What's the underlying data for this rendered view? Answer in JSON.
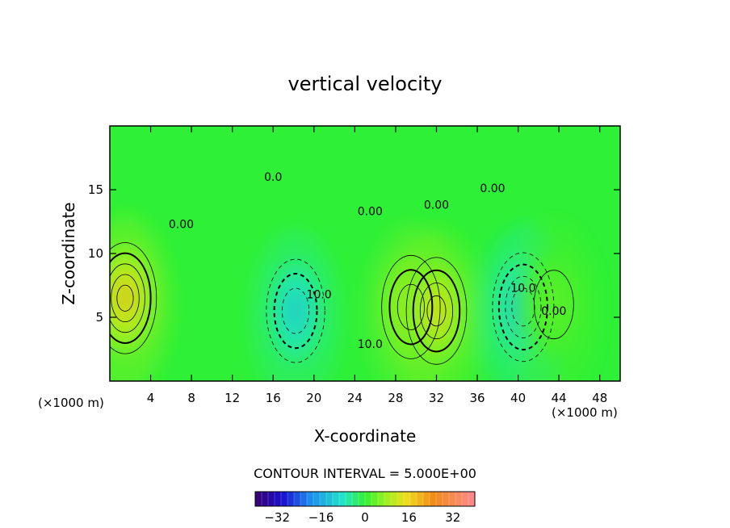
{
  "chart_data": {
    "type": "heatmap",
    "title": "vertical velocity",
    "xlabel": "X-coordinate",
    "ylabel": "Z-coordinate",
    "x_unit": "(×1000 m)",
    "y_unit": "(×1000 m)",
    "xlim": [
      0,
      50
    ],
    "ylim": [
      0,
      20
    ],
    "x_ticks": [
      4,
      8,
      12,
      16,
      20,
      24,
      28,
      32,
      36,
      40,
      44,
      48
    ],
    "y_ticks": [
      5,
      10,
      15
    ],
    "contour_interval_text": "CONTOUR INTERVAL = 5.000E+00",
    "contour_labels": [
      {
        "text": "0.00",
        "x": 7,
        "z": 12
      },
      {
        "text": "0.0",
        "x": 16,
        "z": 15.7
      },
      {
        "text": "0.00",
        "x": 25.5,
        "z": 13
      },
      {
        "text": "0.00",
        "x": 32,
        "z": 13.5
      },
      {
        "text": "0.00",
        "x": 37.5,
        "z": 14.8
      },
      {
        "text": "10.0",
        "x": 20.5,
        "z": 6.5
      },
      {
        "text": "10.0",
        "x": 25.5,
        "z": 2.6
      },
      {
        "text": "10.0",
        "x": 40.5,
        "z": 7
      },
      {
        "text": "0.00",
        "x": 43.5,
        "z": 5.2
      }
    ],
    "features": [
      {
        "sign": "positive",
        "x": 1.5,
        "z": 6.5,
        "peak": 25
      },
      {
        "sign": "negative",
        "x": 18.2,
        "z": 5.5,
        "peak": -17
      },
      {
        "sign": "positive",
        "x": 29.5,
        "z": 5.8,
        "peak": 17
      },
      {
        "sign": "positive",
        "x": 32,
        "z": 5.5,
        "peak": 20
      },
      {
        "sign": "negative",
        "x": 40.5,
        "z": 5.8,
        "peak": -22
      },
      {
        "sign": "positive",
        "x": 43.5,
        "z": 6,
        "peak": 5
      }
    ],
    "colorbar": {
      "ticks": [
        "−32",
        "−16",
        "0",
        "16",
        "32"
      ],
      "range": [
        -40,
        40
      ]
    }
  }
}
